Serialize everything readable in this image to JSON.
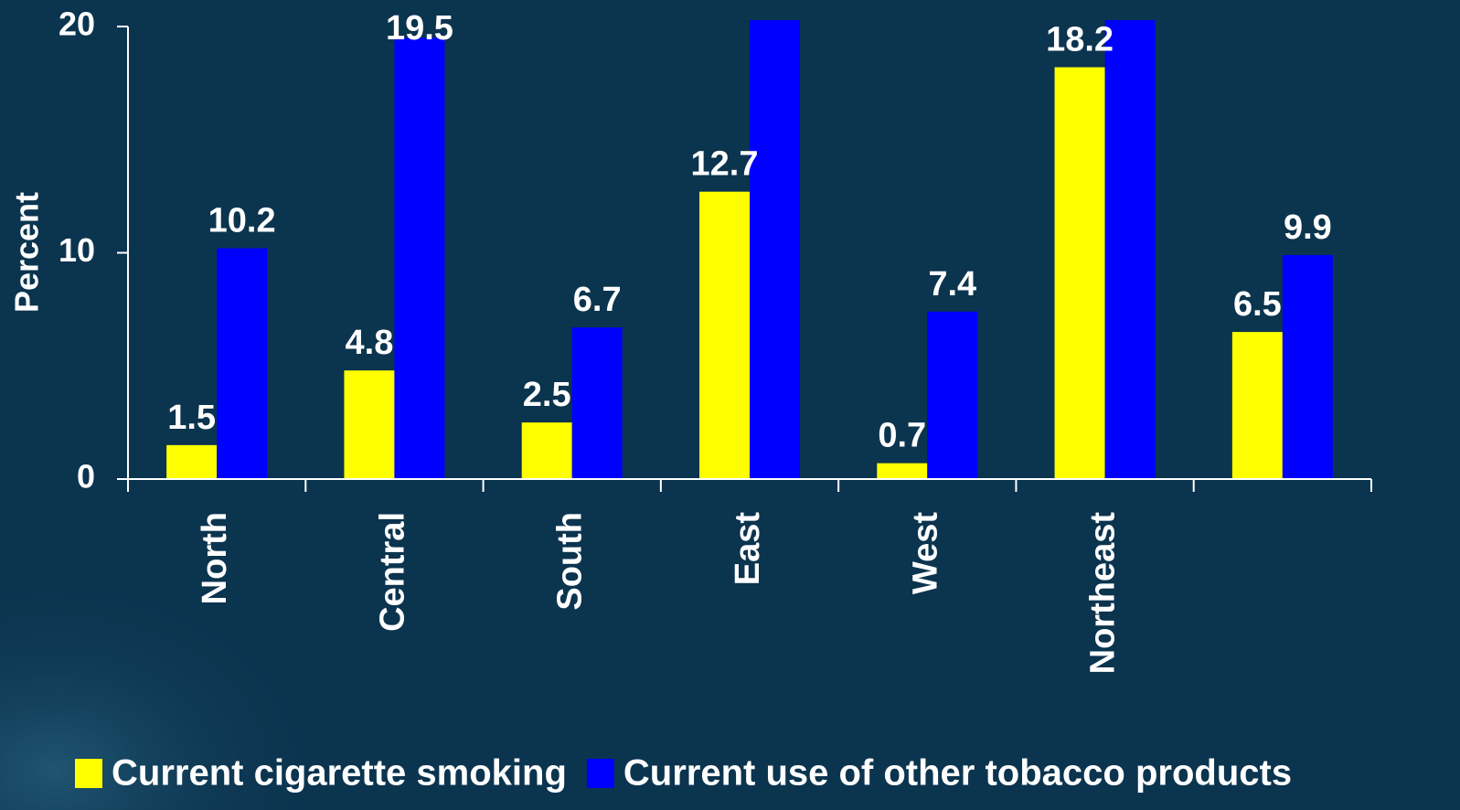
{
  "chart_data": {
    "type": "bar",
    "y_label": "Percent",
    "categories": [
      "North",
      "Central",
      "South",
      "East",
      "West",
      "Northeast",
      null
    ],
    "series": [
      {
        "name": "Current cigarette smoking",
        "color": "#ffff00",
        "values": [
          1.5,
          4.8,
          2.5,
          12.7,
          0.7,
          18.2,
          6.5
        ],
        "value_labels": [
          "1.5",
          "4.8",
          "2.5",
          "12.7",
          "0.7",
          "18.2",
          "6.5"
        ]
      },
      {
        "name": "Current use of other tobacco products",
        "color": "#0000ff",
        "values": [
          10.2,
          19.5,
          6.7,
          20.3,
          7.4,
          20.3,
          9.9
        ],
        "value_labels": [
          "10.2",
          "19.5",
          "6.7",
          null,
          "7.4",
          null,
          "9.9"
        ]
      }
    ],
    "ylim": [
      0,
      20
    ],
    "yticks": [
      0,
      10,
      20
    ],
    "legend": "bottom"
  }
}
